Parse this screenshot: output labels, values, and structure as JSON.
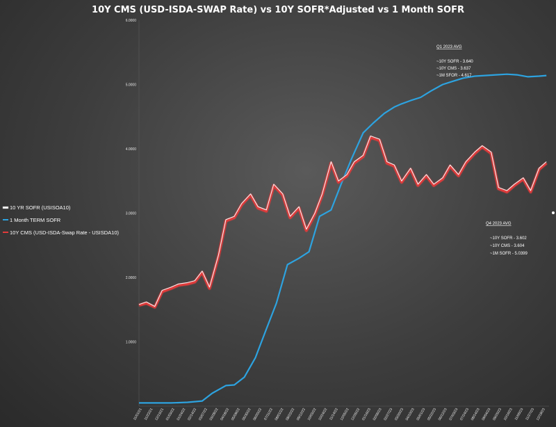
{
  "chart_data": {
    "type": "line",
    "title": "10Y CMS (USD-ISDA-SWAP Rate) vs 10Y SOFR*Adjusted vs 1 Month SOFR",
    "xlabel": "",
    "ylabel": "",
    "ylim": [
      0,
      6
    ],
    "y_ticks": [
      "6.0000",
      "5.0000",
      "4.0000",
      "3.0000",
      "2.0000",
      "1.0000"
    ],
    "grid": false,
    "legend_position": "left",
    "x_range": [
      "2021-11",
      "2023-12"
    ],
    "series": [
      {
        "name": "10 YR SOFR (USISOA10)",
        "color": "#f2f2f2",
        "x": [
          "2021-11-01",
          "2021-11-15",
          "2021-12-01",
          "2021-12-15",
          "2022-01-01",
          "2022-01-15",
          "2022-02-01",
          "2022-02-15",
          "2022-03-01",
          "2022-03-15",
          "2022-04-01",
          "2022-04-15",
          "2022-05-01",
          "2022-05-15",
          "2022-06-01",
          "2022-06-15",
          "2022-07-01",
          "2022-07-15",
          "2022-08-01",
          "2022-08-15",
          "2022-09-01",
          "2022-09-15",
          "2022-10-01",
          "2022-10-15",
          "2022-11-01",
          "2022-11-15",
          "2022-12-01",
          "2022-12-15",
          "2023-01-01",
          "2023-01-15",
          "2023-02-01",
          "2023-02-15",
          "2023-03-01",
          "2023-03-15",
          "2023-04-01",
          "2023-04-15",
          "2023-05-01",
          "2023-05-15",
          "2023-06-01",
          "2023-06-15",
          "2023-07-01",
          "2023-07-15",
          "2023-08-01",
          "2023-08-15",
          "2023-09-01",
          "2023-09-15",
          "2023-10-01",
          "2023-10-15",
          "2023-11-01",
          "2023-11-15",
          "2023-12-01",
          "2023-12-15"
        ],
        "values": [
          1.58,
          1.62,
          1.55,
          1.8,
          1.85,
          1.9,
          1.92,
          1.95,
          2.1,
          1.85,
          2.35,
          2.9,
          2.95,
          3.15,
          3.3,
          3.1,
          3.05,
          3.45,
          3.3,
          2.95,
          3.1,
          2.75,
          3.0,
          3.3,
          3.8,
          3.5,
          3.6,
          3.8,
          3.9,
          4.2,
          4.15,
          3.8,
          3.75,
          3.5,
          3.7,
          3.45,
          3.6,
          3.45,
          3.55,
          3.75,
          3.6,
          3.8,
          3.95,
          4.05,
          3.95,
          3.4,
          3.35,
          3.45,
          3.55,
          3.35,
          3.7,
          3.8
        ]
      },
      {
        "name": "1 Month TERM SOFR",
        "color": "#2da3e0",
        "x": [
          "2021-11-01",
          "2021-12-01",
          "2022-01-01",
          "2022-02-01",
          "2022-03-01",
          "2022-03-20",
          "2022-04-15",
          "2022-05-01",
          "2022-05-20",
          "2022-06-10",
          "2022-07-01",
          "2022-07-20",
          "2022-08-10",
          "2022-09-01",
          "2022-09-20",
          "2022-10-10",
          "2022-11-01",
          "2022-11-20",
          "2022-12-10",
          "2023-01-01",
          "2023-01-20",
          "2023-02-10",
          "2023-03-01",
          "2023-03-15",
          "2023-04-01",
          "2023-04-20",
          "2023-05-10",
          "2023-06-01",
          "2023-06-20",
          "2023-07-10",
          "2023-08-01",
          "2023-08-20",
          "2023-09-10",
          "2023-10-01",
          "2023-10-20",
          "2023-11-10",
          "2023-12-01",
          "2023-12-15"
        ],
        "values": [
          0.05,
          0.05,
          0.05,
          0.06,
          0.08,
          0.2,
          0.32,
          0.33,
          0.45,
          0.75,
          1.2,
          1.6,
          2.2,
          2.3,
          2.4,
          2.95,
          3.05,
          3.45,
          3.85,
          4.25,
          4.4,
          4.55,
          4.65,
          4.7,
          4.75,
          4.8,
          4.9,
          5.0,
          5.05,
          5.1,
          5.13,
          5.14,
          5.15,
          5.16,
          5.15,
          5.12,
          5.13,
          5.14
        ]
      },
      {
        "name": "10Y CMS (USD-ISDA-Swap Rate - USISDA10)",
        "color": "#e23b3b",
        "x": [
          "2021-11-01",
          "2021-11-15",
          "2021-12-01",
          "2021-12-15",
          "2022-01-01",
          "2022-01-15",
          "2022-02-01",
          "2022-02-15",
          "2022-03-01",
          "2022-03-15",
          "2022-04-01",
          "2022-04-15",
          "2022-05-01",
          "2022-05-15",
          "2022-06-01",
          "2022-06-15",
          "2022-07-01",
          "2022-07-15",
          "2022-08-01",
          "2022-08-15",
          "2022-09-01",
          "2022-09-15",
          "2022-10-01",
          "2022-10-15",
          "2022-11-01",
          "2022-11-15",
          "2022-12-01",
          "2022-12-15",
          "2023-01-01",
          "2023-01-15",
          "2023-02-01",
          "2023-02-15",
          "2023-03-01",
          "2023-03-15",
          "2023-04-01",
          "2023-04-15",
          "2023-05-01",
          "2023-05-15",
          "2023-06-01",
          "2023-06-15",
          "2023-07-01",
          "2023-07-15",
          "2023-08-01",
          "2023-08-15",
          "2023-09-01",
          "2023-09-15",
          "2023-10-01",
          "2023-10-15",
          "2023-11-01",
          "2023-11-15",
          "2023-12-01",
          "2023-12-15"
        ],
        "values": [
          1.57,
          1.6,
          1.54,
          1.78,
          1.83,
          1.88,
          1.9,
          1.93,
          2.08,
          1.83,
          2.33,
          2.88,
          2.93,
          3.13,
          3.28,
          3.08,
          3.03,
          3.43,
          3.28,
          2.93,
          3.08,
          2.73,
          2.98,
          3.28,
          3.78,
          3.48,
          3.58,
          3.78,
          3.88,
          4.18,
          4.13,
          3.78,
          3.73,
          3.48,
          3.68,
          3.43,
          3.58,
          3.43,
          3.53,
          3.73,
          3.58,
          3.78,
          3.93,
          4.03,
          3.93,
          3.38,
          3.33,
          3.43,
          3.53,
          3.33,
          3.68,
          3.78
        ]
      }
    ],
    "x_tick_labels": [
      "11/01/21",
      "11/22/21",
      "12/13/21",
      "01/03/22",
      "01/24/22",
      "02/14/22",
      "03/07/22",
      "03/28/22",
      "04/18/22",
      "05/09/22",
      "05/30/22",
      "06/20/22",
      "07/11/22",
      "08/01/22",
      "08/22/22",
      "09/12/22",
      "10/03/22",
      "10/24/22",
      "11/14/22",
      "12/05/22",
      "12/26/22",
      "01/16/23",
      "02/06/23",
      "02/27/23",
      "03/20/23",
      "04/10/23",
      "05/01/23",
      "05/22/23",
      "06/12/23",
      "07/03/23",
      "07/24/23",
      "08/14/23",
      "09/04/23",
      "09/25/23",
      "10/16/23",
      "11/06/23",
      "11/27/23",
      "12/18/23"
    ],
    "annotations": [
      {
        "heading": "Q1 2023 AVG",
        "lines": [
          "~10Y SOFR -  3.640",
          "~10Y CMS -   3.637",
          "~1M SFOR -  4.617"
        ]
      },
      {
        "heading": "Q4  2023 AVG",
        "lines": [
          "~10Y SOFR -  3.602",
          "~10Y CMS - 3.604",
          "~1M SOFR - 5.0399"
        ]
      }
    ]
  }
}
